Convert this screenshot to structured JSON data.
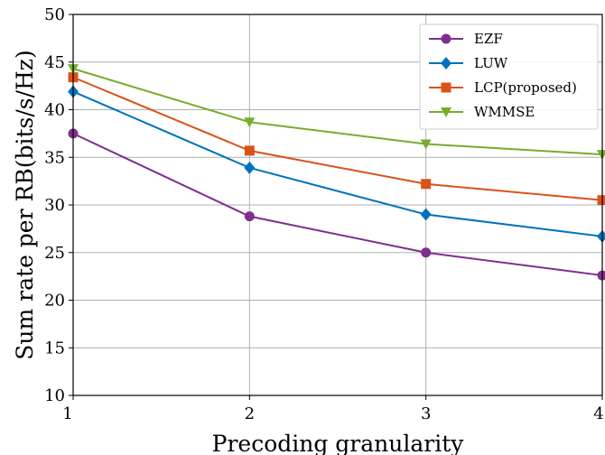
{
  "chart_data": {
    "type": "line",
    "xlabel": "Precoding granularity",
    "ylabel": "Sum rate per RB(bits/s/Hz)",
    "x": [
      1,
      2,
      3,
      4
    ],
    "x_ticks": [
      "1",
      "2",
      "3",
      "4"
    ],
    "xlim": [
      1,
      4
    ],
    "ylim": [
      10,
      50
    ],
    "y_ticks": [
      "10",
      "15",
      "20",
      "25",
      "30",
      "35",
      "40",
      "45",
      "50"
    ],
    "grid": true,
    "legend_position": "top-right",
    "series": [
      {
        "name": "EZF",
        "values": [
          37.5,
          28.8,
          25.0,
          22.6
        ],
        "color": "#7e2f8e",
        "marker": "circle"
      },
      {
        "name": "LUW",
        "values": [
          41.9,
          33.9,
          29.0,
          26.7
        ],
        "color": "#0072bd",
        "marker": "diamond"
      },
      {
        "name": "LCP(proposed)",
        "values": [
          43.4,
          35.7,
          32.2,
          30.5
        ],
        "color": "#d95319",
        "marker": "square"
      },
      {
        "name": "WMMSE",
        "values": [
          44.3,
          38.7,
          36.4,
          35.3
        ],
        "color": "#77ac30",
        "marker": "triangle-down"
      }
    ]
  }
}
